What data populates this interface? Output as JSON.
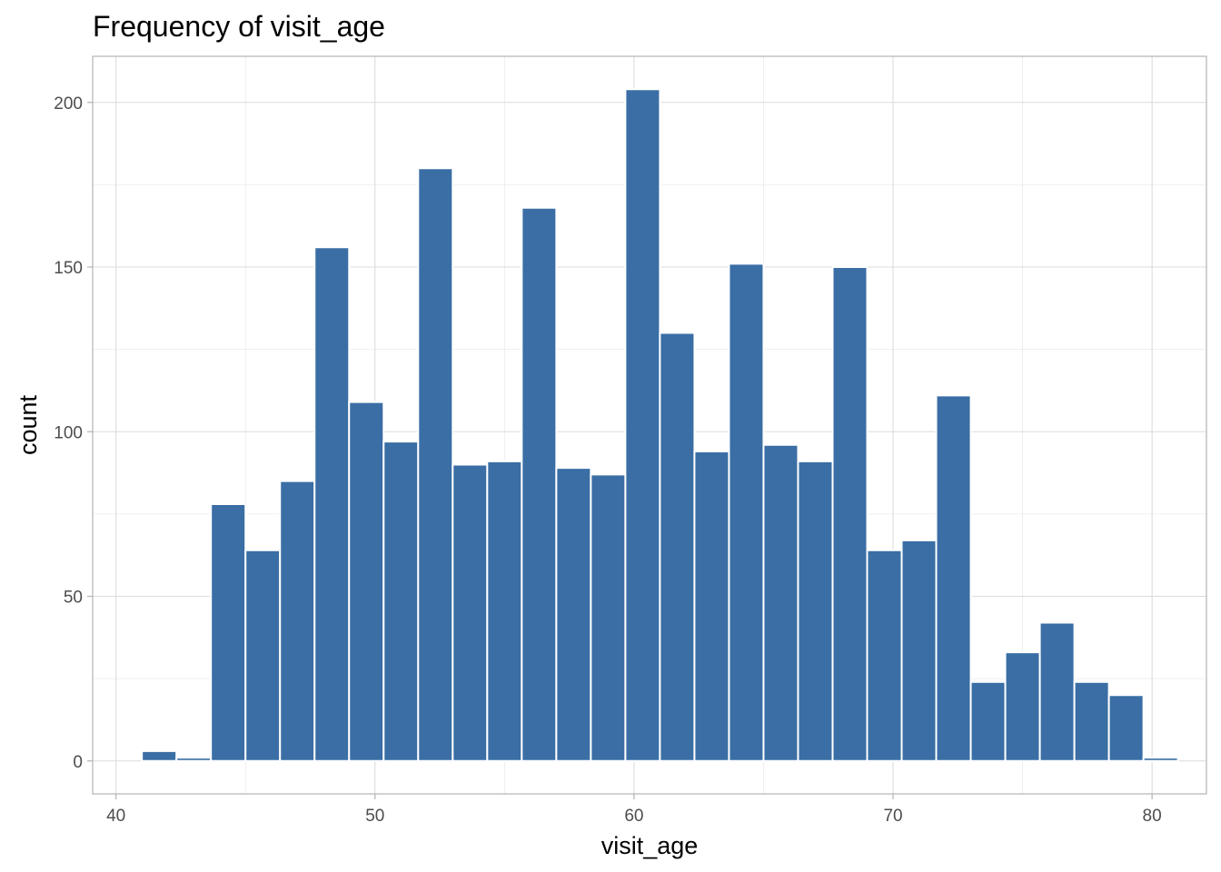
{
  "chart_data": {
    "type": "bar",
    "title": "Frequency of visit_age",
    "xlabel": "visit_age",
    "ylabel": "count",
    "xlim": [
      39.1,
      82.1
    ],
    "ylim": [
      -10,
      214
    ],
    "x_ticks": [
      40,
      50,
      60,
      70,
      80
    ],
    "y_ticks": [
      0,
      50,
      100,
      150,
      200
    ],
    "bin_width": 1.333,
    "bins": [
      {
        "start": 39.6667,
        "end": 41.0,
        "count": 0
      },
      {
        "start": 41.0,
        "end": 42.3333,
        "count": 3
      },
      {
        "start": 42.3333,
        "end": 43.6667,
        "count": 1
      },
      {
        "start": 43.6667,
        "end": 45.0,
        "count": 78
      },
      {
        "start": 45.0,
        "end": 46.3333,
        "count": 64
      },
      {
        "start": 46.3333,
        "end": 47.6667,
        "count": 85
      },
      {
        "start": 47.6667,
        "end": 49.0,
        "count": 156
      },
      {
        "start": 49.0,
        "end": 50.3333,
        "count": 109
      },
      {
        "start": 50.3333,
        "end": 51.6667,
        "count": 97
      },
      {
        "start": 51.6667,
        "end": 53.0,
        "count": 180
      },
      {
        "start": 53.0,
        "end": 54.3333,
        "count": 90
      },
      {
        "start": 54.3333,
        "end": 55.6667,
        "count": 91
      },
      {
        "start": 55.6667,
        "end": 57.0,
        "count": 168
      },
      {
        "start": 57.0,
        "end": 58.3333,
        "count": 89
      },
      {
        "start": 58.3333,
        "end": 59.6667,
        "count": 87
      },
      {
        "start": 59.6667,
        "end": 61.0,
        "count": 204
      },
      {
        "start": 61.0,
        "end": 62.3333,
        "count": 130
      },
      {
        "start": 62.3333,
        "end": 63.6667,
        "count": 94
      },
      {
        "start": 63.6667,
        "end": 65.0,
        "count": 151
      },
      {
        "start": 65.0,
        "end": 66.3333,
        "count": 96
      },
      {
        "start": 66.3333,
        "end": 67.6667,
        "count": 91
      },
      {
        "start": 67.6667,
        "end": 69.0,
        "count": 150
      },
      {
        "start": 69.0,
        "end": 70.3333,
        "count": 64
      },
      {
        "start": 70.3333,
        "end": 71.6667,
        "count": 67
      },
      {
        "start": 71.6667,
        "end": 73.0,
        "count": 111
      },
      {
        "start": 73.0,
        "end": 74.3333,
        "count": 24
      },
      {
        "start": 74.3333,
        "end": 75.6667,
        "count": 33
      },
      {
        "start": 75.6667,
        "end": 77.0,
        "count": 42
      },
      {
        "start": 77.0,
        "end": 78.3333,
        "count": 24
      },
      {
        "start": 78.3333,
        "end": 79.6667,
        "count": 20
      },
      {
        "start": 79.6667,
        "end": 81.0,
        "count": 1
      }
    ],
    "bar_color": "#3a6ea5",
    "bar_outline": "#ffffff",
    "grid": true,
    "legend": "none"
  }
}
